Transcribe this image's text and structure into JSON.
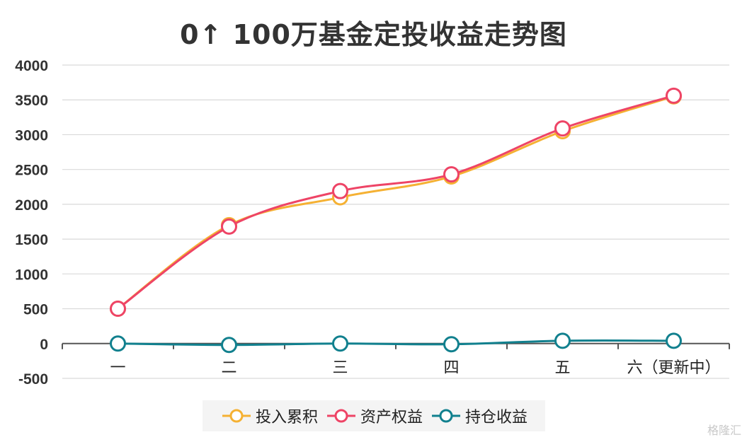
{
  "chart_data": {
    "type": "line",
    "title": "0↑ 100万基金定投收益走势图",
    "categories": [
      "一",
      "二",
      "三",
      "四",
      "五",
      "六（更新中）"
    ],
    "ylim": [
      -500,
      4000
    ],
    "yticks": [
      4000,
      3500,
      3000,
      2500,
      2000,
      1500,
      1000,
      500,
      0,
      -500
    ],
    "grid": true,
    "legend_position": "bottom",
    "series": [
      {
        "name": "投入累积",
        "color": "#f5b133",
        "values": [
          500,
          1700,
          2100,
          2400,
          3050,
          3550
        ]
      },
      {
        "name": "资产权益",
        "color": "#ee4466",
        "values": [
          500,
          1680,
          2190,
          2430,
          3090,
          3560
        ]
      },
      {
        "name": "持仓收益",
        "color": "#11808e",
        "values": [
          0,
          -20,
          0,
          -10,
          40,
          40
        ]
      }
    ]
  },
  "watermark": "格隆汇"
}
